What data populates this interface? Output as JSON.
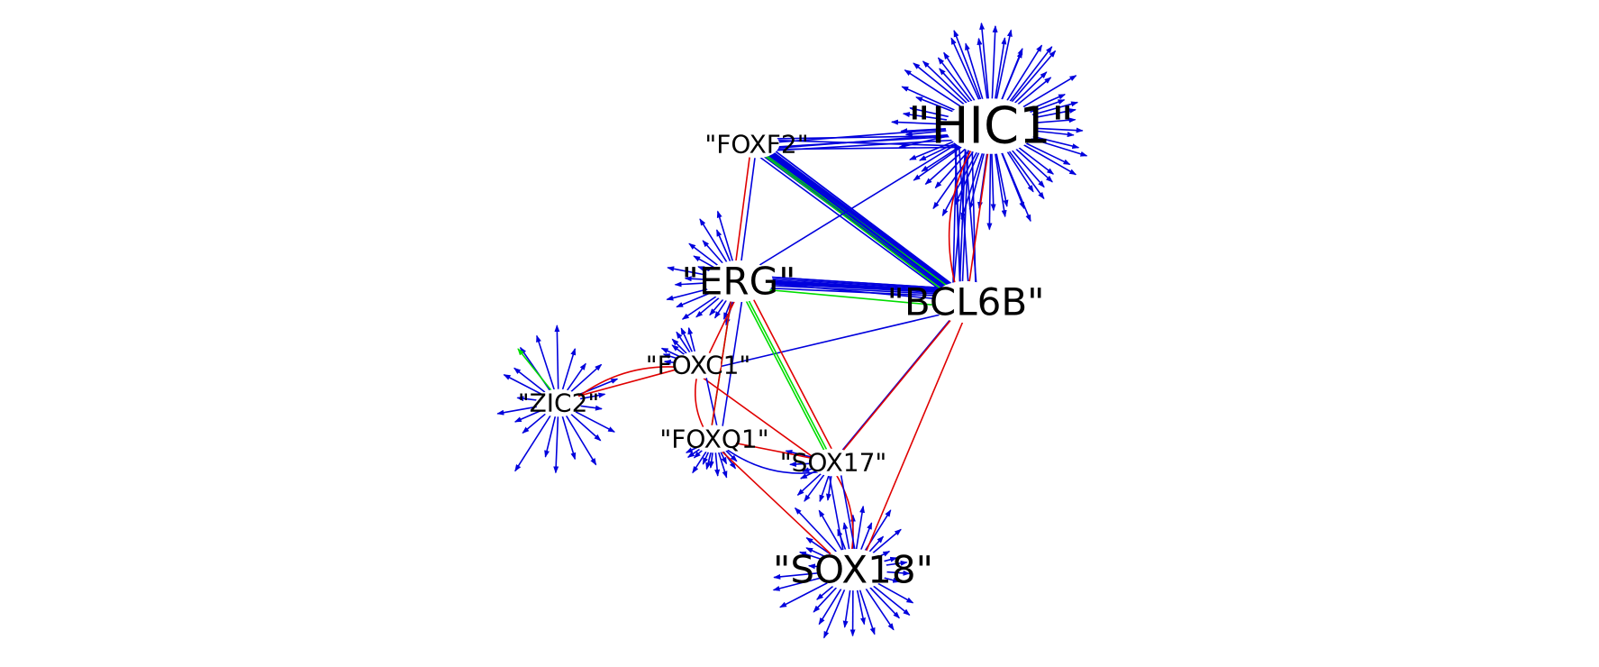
{
  "graph": {
    "colors": {
      "background": "#ffffff",
      "blue": "#0000dd",
      "red": "#e00000",
      "green": "#00dd00",
      "text": "#000000"
    },
    "nodes": [
      {
        "id": "HIC1",
        "label": "\"HIC1\"",
        "size": "xlarge",
        "fan_out": 64
      },
      {
        "id": "FOXF2",
        "label": "\"FOXF2\"",
        "size": "medium",
        "fan_out": 0
      },
      {
        "id": "ERG",
        "label": "\"ERG\"",
        "size": "large",
        "fan_out": 18
      },
      {
        "id": "BCL6B",
        "label": "\"BCL6B\"",
        "size": "large",
        "fan_out": 0
      },
      {
        "id": "FOXC1",
        "label": "\"FOXC1\"",
        "size": "medium",
        "fan_out": 8
      },
      {
        "id": "ZIC2",
        "label": "\"ZIC2\"",
        "size": "medium",
        "fan_out": 22
      },
      {
        "id": "FOXQ1",
        "label": "\"FOXQ1\"",
        "size": "medium",
        "fan_out": 12
      },
      {
        "id": "SOX17",
        "label": "\"SOX17\"",
        "size": "medium",
        "fan_out": 8
      },
      {
        "id": "SOX18",
        "label": "\"SOX18\"",
        "size": "large",
        "fan_out": 34
      }
    ],
    "edges": [
      {
        "from": "HIC1",
        "to": "BCL6B",
        "color": "red",
        "curved": true
      },
      {
        "from": "BCL6B",
        "to": "HIC1",
        "color": "red",
        "curved": false
      },
      {
        "from": "BCL6B",
        "to": "SOX18",
        "color": "red",
        "curved": false
      },
      {
        "from": "BCL6B",
        "to": "SOX17",
        "color": "blue",
        "curved": false
      },
      {
        "from": "FOXF2",
        "to": "ERG",
        "color": "blue",
        "curved": false
      },
      {
        "from": "FOXF2",
        "to": "BCL6B",
        "color": "blue",
        "curved": false
      },
      {
        "from": "FOXF2",
        "to": "HIC1",
        "color": "blue",
        "curved": false
      },
      {
        "from": "FOXF2",
        "to": "BCL6B",
        "color": "green",
        "curved": false
      },
      {
        "from": "BCL6B",
        "to": "ERG",
        "color": "blue",
        "curved": false
      },
      {
        "from": "BCL6B",
        "to": "ERG",
        "color": "green",
        "curved": false
      },
      {
        "from": "BCL6B",
        "to": "FOXF2",
        "color": "blue",
        "curved": false
      },
      {
        "from": "BCL6B",
        "to": "FOXC1",
        "color": "blue",
        "curved": false
      },
      {
        "from": "HIC1",
        "to": "ERG",
        "color": "blue",
        "curved": false
      },
      {
        "from": "HIC1",
        "to": "FOXF2",
        "color": "blue",
        "curved": false
      },
      {
        "from": "ERG",
        "to": "FOXC1",
        "color": "red",
        "curved": false
      },
      {
        "from": "ERG",
        "to": "FOXQ1",
        "color": "green",
        "curved": false
      },
      {
        "from": "ERG",
        "to": "SOX17",
        "color": "green",
        "curved": false
      },
      {
        "from": "ERG",
        "to": "FOXQ1",
        "color": "blue",
        "curved": false
      },
      {
        "from": "ERG",
        "to": "FOXF2",
        "color": "red",
        "curved": false
      },
      {
        "from": "SOX17",
        "to": "ERG",
        "color": "green",
        "curved": false
      },
      {
        "from": "SOX17",
        "to": "ERG",
        "color": "red",
        "curved": false
      },
      {
        "from": "SOX17",
        "to": "FOXC1",
        "color": "red",
        "curved": false
      },
      {
        "from": "SOX17",
        "to": "BCL6B",
        "color": "red",
        "curved": false
      },
      {
        "from": "FOXC1",
        "to": "ZIC2",
        "color": "red",
        "curved": true
      },
      {
        "from": "ZIC2",
        "to": "FOXC1",
        "color": "red",
        "curved": false
      },
      {
        "from": "FOXC1",
        "to": "FOXQ1",
        "color": "red",
        "curved": true
      },
      {
        "from": "FOXC1",
        "to": "FOXQ1",
        "color": "blue",
        "curved": false
      },
      {
        "from": "FOXQ1",
        "to": "ERG",
        "color": "red",
        "curved": false
      },
      {
        "from": "FOXQ1",
        "to": "SOX17",
        "color": "red",
        "curved": false
      },
      {
        "from": "FOXQ1",
        "to": "SOX17",
        "color": "blue",
        "curved": true
      },
      {
        "from": "SOX18",
        "to": "SOX17",
        "color": "red",
        "curved": true
      },
      {
        "from": "SOX18",
        "to": "FOXQ1",
        "color": "red",
        "curved": false
      },
      {
        "from": "SOX17",
        "to": "SOX18",
        "color": "blue",
        "curved": false
      },
      {
        "from": "SOX18",
        "to": "SOX17",
        "color": "blue",
        "curved": false
      },
      {
        "from": "ZIC2",
        "to": "ZIC2",
        "color": "green",
        "curved": false
      }
    ]
  }
}
